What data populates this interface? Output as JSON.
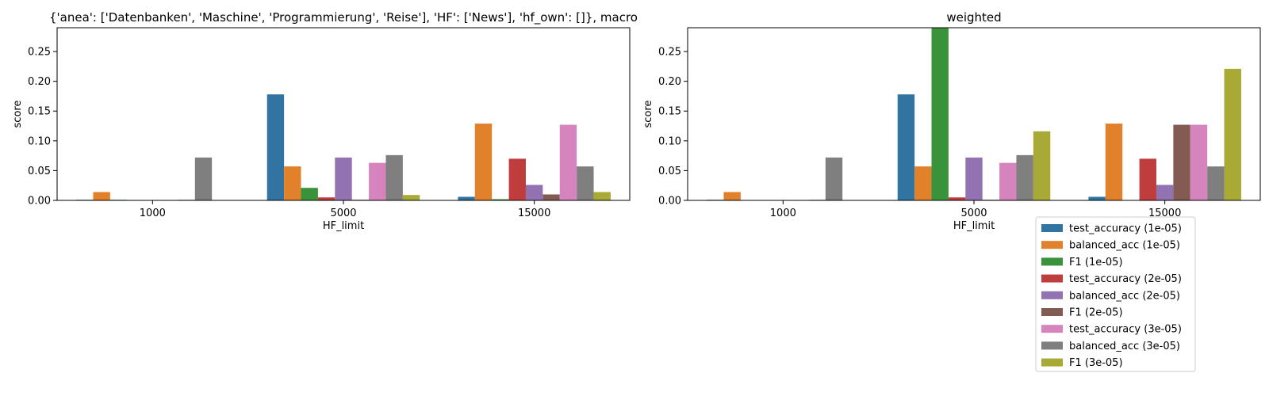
{
  "chart_data": [
    {
      "type": "bar",
      "title": "{'anea': ['Datenbanken', 'Maschine', 'Programmierung', 'Reise'], 'HF': ['News'], 'hf_own': []}, macro",
      "xlabel": "HF_limit",
      "ylabel": "score",
      "categories": [
        "1000",
        "5000",
        "15000"
      ],
      "ylim": [
        0,
        0.29
      ],
      "yticks": [
        "0.00",
        "0.05",
        "0.10",
        "0.15",
        "0.20",
        "0.25"
      ],
      "grid": false,
      "series": [
        {
          "name": "test_accuracy (1e-05)",
          "values": [
            0.001,
            0.178,
            0.006
          ]
        },
        {
          "name": "balanced_acc (1e-05)",
          "values": [
            0.014,
            0.057,
            0.129
          ]
        },
        {
          "name": "F1 (1e-05)",
          "values": [
            0.001,
            0.021,
            0.002
          ]
        },
        {
          "name": "test_accuracy (2e-05)",
          "values": [
            0.0,
            0.005,
            0.07
          ]
        },
        {
          "name": "balanced_acc (2e-05)",
          "values": [
            0.0,
            0.072,
            0.026
          ]
        },
        {
          "name": "F1 (2e-05)",
          "values": [
            0.0,
            0.001,
            0.01
          ]
        },
        {
          "name": "test_accuracy (3e-05)",
          "values": [
            0.001,
            0.063,
            0.127
          ]
        },
        {
          "name": "balanced_acc (3e-05)",
          "values": [
            0.072,
            0.076,
            0.057
          ]
        },
        {
          "name": "F1 (3e-05)",
          "values": [
            0.0,
            0.009,
            0.014
          ]
        }
      ]
    },
    {
      "type": "bar",
      "title": "weighted",
      "xlabel": "HF_limit",
      "ylabel": "score",
      "categories": [
        "1000",
        "5000",
        "15000"
      ],
      "ylim": [
        0,
        0.29
      ],
      "yticks": [
        "0.00",
        "0.05",
        "0.10",
        "0.15",
        "0.20",
        "0.25"
      ],
      "grid": false,
      "legend": "below-right",
      "series": [
        {
          "name": "test_accuracy (1e-05)",
          "values": [
            0.001,
            0.178,
            0.006
          ]
        },
        {
          "name": "balanced_acc (1e-05)",
          "values": [
            0.014,
            0.057,
            0.129
          ]
        },
        {
          "name": "F1 (1e-05)",
          "values": [
            0.0,
            0.29,
            0.0
          ]
        },
        {
          "name": "test_accuracy (2e-05)",
          "values": [
            0.0,
            0.005,
            0.07
          ]
        },
        {
          "name": "balanced_acc (2e-05)",
          "values": [
            0.0,
            0.072,
            0.026
          ]
        },
        {
          "name": "F1 (2e-05)",
          "values": [
            0.0,
            0.001,
            0.127
          ]
        },
        {
          "name": "test_accuracy (3e-05)",
          "values": [
            0.001,
            0.063,
            0.127
          ]
        },
        {
          "name": "balanced_acc (3e-05)",
          "values": [
            0.072,
            0.076,
            0.057
          ]
        },
        {
          "name": "F1 (3e-05)",
          "values": [
            0.0,
            0.116,
            0.221
          ]
        }
      ]
    }
  ],
  "colors": [
    "#3274a1",
    "#e1812c",
    "#3a923a",
    "#c03d3e",
    "#9372b2",
    "#845b53",
    "#d684bd",
    "#7f7f7f",
    "#a9aa35"
  ]
}
